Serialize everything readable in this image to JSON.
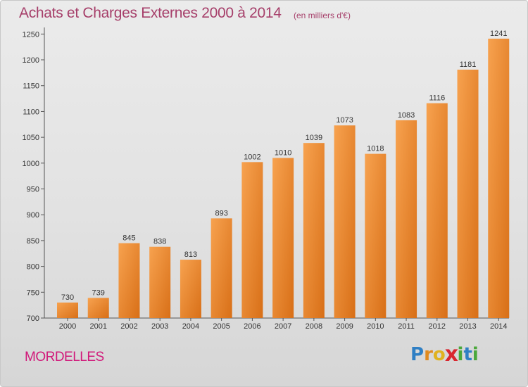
{
  "title": "Achats et Charges Externes 2000 à 2014",
  "unit_note": "(en milliers d'€)",
  "commune": "MORDELLES",
  "logo": {
    "letters": [
      "P",
      "r",
      "o",
      "x",
      "i",
      "t",
      "i"
    ],
    "colors": [
      "#2f7fc4",
      "#e08a1e",
      "#e0b21e",
      "#d8262e",
      "#4aa83a",
      "#2f7fc4",
      "#4aa83a"
    ]
  },
  "chart_data": {
    "type": "bar",
    "title": "Achats et Charges Externes 2000 à 2014",
    "subtitle": "(en milliers d'€)",
    "categories": [
      "2000",
      "2001",
      "2002",
      "2003",
      "2004",
      "2005",
      "2006",
      "2007",
      "2008",
      "2009",
      "2010",
      "2011",
      "2012",
      "2013",
      "2014"
    ],
    "values": [
      730,
      739,
      845,
      838,
      813,
      893,
      1002,
      1010,
      1039,
      1073,
      1018,
      1083,
      1116,
      1181,
      1241
    ],
    "xlabel": "",
    "ylabel": "",
    "ylim": [
      700,
      1260
    ],
    "yticks": [
      700,
      750,
      800,
      850,
      900,
      950,
      1000,
      1050,
      1100,
      1150,
      1200,
      1250
    ],
    "grid": false,
    "bar_color": "#f0913a"
  }
}
